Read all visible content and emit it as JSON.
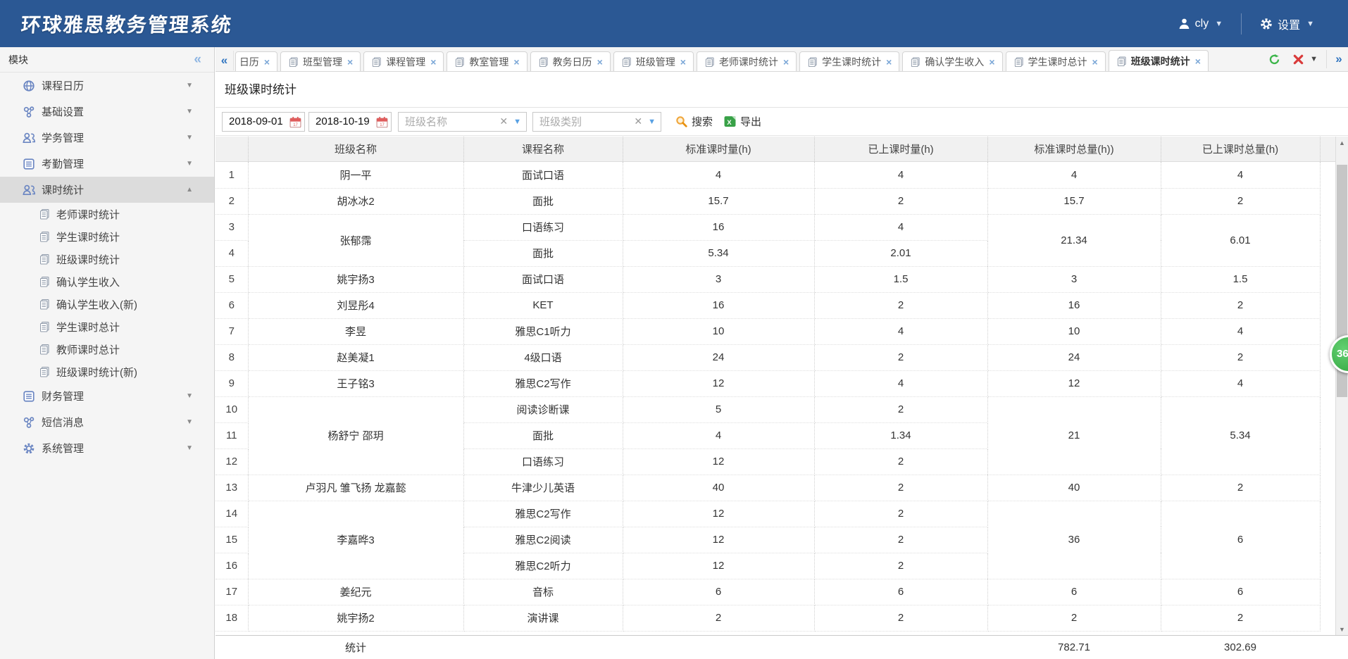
{
  "app": {
    "title": "环球雅思教务管理系统",
    "user": {
      "name": "cly"
    },
    "settings": {
      "label": "设置"
    }
  },
  "colors": {
    "header_bg": "#2b5894",
    "badge_green": "#3cb54a",
    "excel_green": "#38a147",
    "close_red": "#d93a3a",
    "calendar_red": "#e05c5c",
    "selected_item_bg": "#dcdcdc"
  },
  "sidebar": {
    "header": "模块",
    "items": [
      {
        "label": "课程日历",
        "icon": "globe-icon"
      },
      {
        "label": "基础设置",
        "icon": "nodes-icon"
      },
      {
        "label": "学务管理",
        "icon": "people-icon"
      },
      {
        "label": "考勤管理",
        "icon": "list-icon"
      },
      {
        "label": "课时统计",
        "icon": "people-icon",
        "selected": true,
        "expanded": true,
        "children": [
          "老师课时统计",
          "学生课时统计",
          "班级课时统计",
          "确认学生收入",
          "确认学生收入(新)",
          "学生课时总计",
          "教师课时总计",
          "班级课时统计(新)"
        ]
      },
      {
        "label": "财务管理",
        "icon": "list-icon"
      },
      {
        "label": "短信消息",
        "icon": "nodes-icon"
      },
      {
        "label": "系统管理",
        "icon": "gear-icon"
      }
    ]
  },
  "tabs": {
    "items": [
      {
        "label": "日历",
        "truncated": true
      },
      {
        "label": "班型管理"
      },
      {
        "label": "课程管理"
      },
      {
        "label": "教室管理"
      },
      {
        "label": "教务日历"
      },
      {
        "label": "班级管理"
      },
      {
        "label": "老师课时统计"
      },
      {
        "label": "学生课时统计"
      },
      {
        "label": "确认学生收入"
      },
      {
        "label": "学生课时总计"
      },
      {
        "label": "班级课时统计",
        "active": true
      }
    ]
  },
  "panel": {
    "title": "班级课时统计",
    "toolbar": {
      "date_from": "2018-09-01",
      "date_to": "2018-10-19",
      "class_name_placeholder": "班级名称",
      "class_type_placeholder": "班级类别",
      "search_label": "搜索",
      "export_label": "导出"
    },
    "table": {
      "columns": [
        "",
        "班级名称",
        "课程名称",
        "标准课时量(h)",
        "已上课时量(h)",
        "标准课时总量(h))",
        "已上课时总量(h)"
      ],
      "groups": [
        {
          "name": "阴一平",
          "std_total": "4",
          "done_total": "4",
          "courses": [
            {
              "course": "面试口语",
              "std": "4",
              "done": "4"
            }
          ]
        },
        {
          "name": "胡冰冰2",
          "std_total": "15.7",
          "done_total": "2",
          "courses": [
            {
              "course": "面批",
              "std": "15.7",
              "done": "2"
            }
          ]
        },
        {
          "name": "张郁霈",
          "std_total": "21.34",
          "done_total": "6.01",
          "courses": [
            {
              "course": "口语练习",
              "std": "16",
              "done": "4"
            },
            {
              "course": "面批",
              "std": "5.34",
              "done": "2.01"
            }
          ]
        },
        {
          "name": "姚宇扬3",
          "std_total": "3",
          "done_total": "1.5",
          "courses": [
            {
              "course": "面试口语",
              "std": "3",
              "done": "1.5"
            }
          ]
        },
        {
          "name": "刘昱彤4",
          "std_total": "16",
          "done_total": "2",
          "courses": [
            {
              "course": "KET",
              "std": "16",
              "done": "2"
            }
          ]
        },
        {
          "name": "李昱",
          "std_total": "10",
          "done_total": "4",
          "courses": [
            {
              "course": "雅思C1听力",
              "std": "10",
              "done": "4"
            }
          ]
        },
        {
          "name": "赵美凝1",
          "std_total": "24",
          "done_total": "2",
          "courses": [
            {
              "course": "4级口语",
              "std": "24",
              "done": "2"
            }
          ]
        },
        {
          "name": "王子铭3",
          "std_total": "12",
          "done_total": "4",
          "courses": [
            {
              "course": "雅思C2写作",
              "std": "12",
              "done": "4"
            }
          ]
        },
        {
          "name": "杨舒宁 邵玥",
          "std_total": "21",
          "done_total": "5.34",
          "courses": [
            {
              "course": "阅读诊断课",
              "std": "5",
              "done": "2"
            },
            {
              "course": "面批",
              "std": "4",
              "done": "1.34"
            },
            {
              "course": "口语练习",
              "std": "12",
              "done": "2"
            }
          ]
        },
        {
          "name": "卢羽凡 雏飞扬 龙嘉懿",
          "std_total": "40",
          "done_total": "2",
          "courses": [
            {
              "course": "牛津少儿英语",
              "std": "40",
              "done": "2"
            }
          ]
        },
        {
          "name": "李嘉晔3",
          "std_total": "36",
          "done_total": "6",
          "courses": [
            {
              "course": "雅思C2写作",
              "std": "12",
              "done": "2"
            },
            {
              "course": "雅思C2阅读",
              "std": "12",
              "done": "2"
            },
            {
              "course": "雅思C2听力",
              "std": "12",
              "done": "2"
            }
          ]
        },
        {
          "name": "姜纪元",
          "std_total": "6",
          "done_total": "6",
          "courses": [
            {
              "course": "音标",
              "std": "6",
              "done": "6"
            }
          ]
        },
        {
          "name": "姚宇扬2",
          "std_total": "2",
          "done_total": "2",
          "courses": [
            {
              "course": "演讲课",
              "std": "2",
              "done": "2"
            }
          ]
        }
      ],
      "footer": {
        "label": "统计",
        "std_total": "782.71",
        "done_total": "302.69"
      }
    }
  },
  "badge": {
    "label": "36"
  }
}
